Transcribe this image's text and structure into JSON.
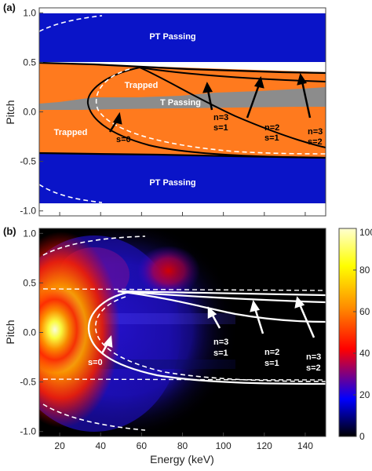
{
  "colors": {
    "passing": "#0a14c8",
    "trapped": "#ff7a1e",
    "t_passing": "#8c8c8c",
    "boundary": "#000000",
    "dashed": "#ffffff",
    "colorbar": [
      "#000000",
      "#0000ff",
      "#ff0000",
      "#ffa500",
      "#ffff00",
      "#ffffc8"
    ]
  },
  "chart_data": [
    {
      "type": "area",
      "panel_label": "(a)",
      "xlabel": "",
      "ylabel": "Pitch",
      "xlim": [
        10,
        150
      ],
      "ylim": [
        -1.05,
        1.05
      ],
      "yticks": [
        "1.0",
        "0.5",
        "0.0",
        "-0.5",
        "-1.0"
      ],
      "regions": [
        {
          "name": "PT Passing",
          "y_range": [
            0.45,
            1.0
          ]
        },
        {
          "name": "Trapped",
          "y_range": [
            -0.45,
            0.45
          ]
        },
        {
          "name": "T Passing",
          "y_range": [
            0.0,
            0.1
          ]
        },
        {
          "name": "PT Passing",
          "y_range": [
            -1.0,
            -0.5
          ]
        }
      ],
      "labels": {
        "pt_passing_top": "PT Passing",
        "trapped_upper": "Trapped",
        "t_passing": "T Passing",
        "trapped_lower": "Trapped",
        "pt_passing_bottom": "PT Passing"
      },
      "annotations": [
        {
          "line1": "s=0"
        },
        {
          "line1": "n=3",
          "line2": "s=1"
        },
        {
          "line1": "n=2",
          "line2": "s=1"
        },
        {
          "line1": "n=3",
          "line2": "s=2"
        }
      ]
    },
    {
      "type": "heatmap",
      "panel_label": "(b)",
      "xlabel": "Energy (keV)",
      "ylabel": "Pitch",
      "xlim": [
        10,
        150
      ],
      "ylim": [
        -1.05,
        1.05
      ],
      "xticks": [
        "20",
        "40",
        "60",
        "80",
        "100",
        "120",
        "140"
      ],
      "yticks": [
        "1.0",
        "0.5",
        "0.0",
        "-0.5",
        "-1.0"
      ],
      "colorbar": {
        "range": [
          0,
          100
        ],
        "ticks": [
          "100",
          "80",
          "60",
          "40",
          "20",
          "0"
        ]
      },
      "annotations": [
        {
          "line1": "s=0"
        },
        {
          "line1": "n=3",
          "line2": "s=1"
        },
        {
          "line1": "n=2",
          "line2": "s=1"
        },
        {
          "line1": "n=3",
          "line2": "s=2"
        }
      ]
    }
  ]
}
